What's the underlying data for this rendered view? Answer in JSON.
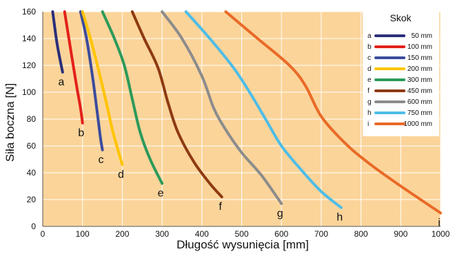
{
  "chart_data": {
    "type": "line",
    "xlabel": "Długość wysunięcia [mm]",
    "ylabel": "Siła boczna [N]",
    "xlim": [
      0,
      1000
    ],
    "ylim": [
      0,
      160
    ],
    "x_ticks": [
      0,
      100,
      200,
      300,
      400,
      500,
      600,
      700,
      800,
      900,
      1000
    ],
    "y_ticks": [
      0,
      20,
      40,
      60,
      80,
      100,
      120,
      140,
      160
    ],
    "grid": true,
    "background_color": "#fbd49a",
    "legend": {
      "title": "Skok",
      "position": "top-right"
    },
    "series": [
      {
        "name": "50 mm",
        "key": "a",
        "label": "a",
        "color": "#2b2f7a",
        "points": [
          [
            25,
            160
          ],
          [
            35,
            138
          ],
          [
            45,
            122
          ],
          [
            50,
            115
          ]
        ]
      },
      {
        "name": "100 mm",
        "key": "b",
        "label": "b",
        "color": "#e32119",
        "points": [
          [
            55,
            160
          ],
          [
            70,
            132
          ],
          [
            85,
            105
          ],
          [
            95,
            88
          ],
          [
            100,
            77
          ]
        ]
      },
      {
        "name": "150 mm",
        "key": "c",
        "label": "c",
        "color": "#3c4c9c",
        "points": [
          [
            95,
            160
          ],
          [
            110,
            140
          ],
          [
            125,
            112
          ],
          [
            137,
            85
          ],
          [
            145,
            66
          ],
          [
            150,
            57
          ]
        ]
      },
      {
        "name": "200 mm",
        "key": "d",
        "label": "d",
        "color": "#ffc400",
        "points": [
          [
            100,
            160
          ],
          [
            120,
            140
          ],
          [
            140,
            117
          ],
          [
            160,
            92
          ],
          [
            175,
            72
          ],
          [
            190,
            56
          ],
          [
            200,
            46
          ]
        ]
      },
      {
        "name": "300 mm",
        "key": "e",
        "label": "e",
        "color": "#2c9a5a",
        "points": [
          [
            150,
            160
          ],
          [
            180,
            140
          ],
          [
            205,
            120
          ],
          [
            225,
            95
          ],
          [
            245,
            70
          ],
          [
            270,
            50
          ],
          [
            300,
            32
          ]
        ]
      },
      {
        "name": "450 mm",
        "key": "f",
        "label": "f",
        "color": "#8e3a12",
        "points": [
          [
            225,
            160
          ],
          [
            255,
            140
          ],
          [
            290,
            118
          ],
          [
            315,
            92
          ],
          [
            340,
            70
          ],
          [
            380,
            48
          ],
          [
            420,
            32
          ],
          [
            450,
            22
          ]
        ]
      },
      {
        "name": "600 mm",
        "key": "g",
        "label": "g",
        "color": "#8c8c8c",
        "points": [
          [
            300,
            160
          ],
          [
            350,
            140
          ],
          [
            400,
            112
          ],
          [
            430,
            88
          ],
          [
            460,
            72
          ],
          [
            500,
            55
          ],
          [
            550,
            38
          ],
          [
            600,
            17
          ]
        ]
      },
      {
        "name": "750 mm",
        "key": "h",
        "label": "h",
        "color": "#4dbde8",
        "points": [
          [
            360,
            160
          ],
          [
            420,
            140
          ],
          [
            480,
            118
          ],
          [
            520,
            100
          ],
          [
            560,
            80
          ],
          [
            600,
            60
          ],
          [
            650,
            42
          ],
          [
            700,
            26
          ],
          [
            750,
            14
          ]
        ]
      },
      {
        "name": "1000 mm",
        "key": "i",
        "label": "i",
        "color": "#e96a27",
        "points": [
          [
            460,
            160
          ],
          [
            540,
            140
          ],
          [
            620,
            120
          ],
          [
            660,
            105
          ],
          [
            700,
            82
          ],
          [
            760,
            62
          ],
          [
            820,
            47
          ],
          [
            900,
            30
          ],
          [
            1000,
            10
          ]
        ]
      }
    ]
  }
}
